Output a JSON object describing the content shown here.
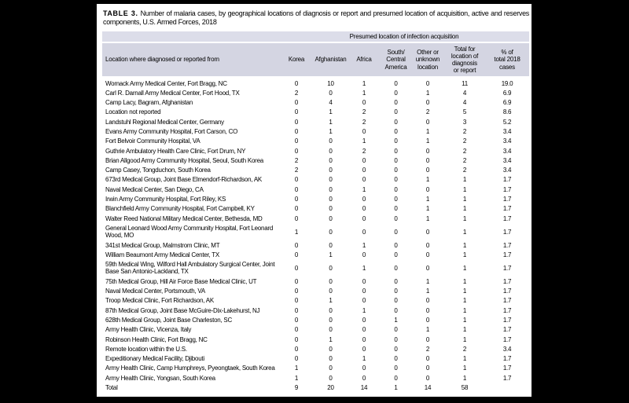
{
  "page": {
    "background_color": "#000000",
    "paper_color": "#ffffff"
  },
  "table": {
    "title_label": "TABLE 3.",
    "title_text": "Number of malaria cases, by geographical locations of diagnosis or report and presumed location of acquisition, active and reserves components, U.S. Armed Forces, 2018",
    "colors": {
      "spanner_band": "#dcdde9",
      "header_band": "#d4d5e2"
    },
    "spanner_header": "Presumed location of infection acquisition",
    "location_header": "Location where diagnosed or reported from",
    "columns": [
      "Korea",
      "Afghanistan",
      "Africa",
      "South/\nCentral\nAmerica",
      "Other or\nunknown\nlocation",
      "Total for\nlocation of\ndiagnosis\nor report",
      "% of\ntotal 2018\ncases"
    ],
    "rows": [
      {
        "location": "Womack Army Medical Center, Fort Bragg, NC",
        "values": [
          "0",
          "10",
          "1",
          "0",
          "0",
          "11",
          "19.0"
        ]
      },
      {
        "location": "Carl R. Darnall Army Medical Center, Fort Hood, TX",
        "values": [
          "2",
          "0",
          "1",
          "0",
          "1",
          "4",
          "6.9"
        ]
      },
      {
        "location": "Camp Lacy, Bagram, Afghanistan",
        "values": [
          "0",
          "4",
          "0",
          "0",
          "0",
          "4",
          "6.9"
        ]
      },
      {
        "location": "Location not reported",
        "values": [
          "0",
          "1",
          "2",
          "0",
          "2",
          "5",
          "8.6"
        ]
      },
      {
        "location": "Landstuhl Regional Medical Center, Germany",
        "values": [
          "0",
          "1",
          "2",
          "0",
          "0",
          "3",
          "5.2"
        ]
      },
      {
        "location": "Evans Army Community Hospital, Fort Carson, CO",
        "values": [
          "0",
          "1",
          "0",
          "0",
          "1",
          "2",
          "3.4"
        ]
      },
      {
        "location": "Fort Belvoir Community Hospital, VA",
        "values": [
          "0",
          "0",
          "1",
          "0",
          "1",
          "2",
          "3.4"
        ]
      },
      {
        "location": "Guthrie Ambulatory Health Care Clinic, Fort Drum, NY",
        "values": [
          "0",
          "0",
          "2",
          "0",
          "0",
          "2",
          "3.4"
        ]
      },
      {
        "location": "Brian Allgood Army Community Hospital, Seoul, South Korea",
        "values": [
          "2",
          "0",
          "0",
          "0",
          "0",
          "2",
          "3.4"
        ]
      },
      {
        "location": "Camp Casey, Tongduchon, South Korea",
        "values": [
          "2",
          "0",
          "0",
          "0",
          "0",
          "2",
          "3.4"
        ]
      },
      {
        "location": "673rd Medical Group, Joint Base Elmendorf-Richardson, AK",
        "values": [
          "0",
          "0",
          "0",
          "0",
          "1",
          "1",
          "1.7"
        ]
      },
      {
        "location": "Naval Medical Center, San Diego, CA",
        "values": [
          "0",
          "0",
          "1",
          "0",
          "0",
          "1",
          "1.7"
        ]
      },
      {
        "location": "Irwin Army Community Hospital, Fort Riley, KS",
        "values": [
          "0",
          "0",
          "0",
          "0",
          "1",
          "1",
          "1.7"
        ]
      },
      {
        "location": "Blanchfield Army Community Hospital, Fort Campbell, KY",
        "values": [
          "0",
          "0",
          "0",
          "0",
          "1",
          "1",
          "1.7"
        ]
      },
      {
        "location": "Walter Reed National Military Medical Center, Bethesda, MD",
        "values": [
          "0",
          "0",
          "0",
          "0",
          "1",
          "1",
          "1.7"
        ]
      },
      {
        "location": "General Leonard Wood Army Community Hospital, Fort Leonard Wood, MO",
        "values": [
          "1",
          "0",
          "0",
          "0",
          "0",
          "1",
          "1.7"
        ]
      },
      {
        "location": "341st Medical Group, Malmstrom Clinic, MT",
        "values": [
          "0",
          "0",
          "1",
          "0",
          "0",
          "1",
          "1.7"
        ]
      },
      {
        "location": "William Beaumont Army Medical Center, TX",
        "values": [
          "0",
          "1",
          "0",
          "0",
          "0",
          "1",
          "1.7"
        ]
      },
      {
        "location": "59th Medical Wing, Wilford Hall Ambulatory Surgical Center, Joint Base San Antonio-Lackland, TX",
        "values": [
          "0",
          "0",
          "1",
          "0",
          "0",
          "1",
          "1.7"
        ]
      },
      {
        "location": "75th Medical Group, Hill Air Force Base Medical Clinic, UT",
        "values": [
          "0",
          "0",
          "0",
          "0",
          "1",
          "1",
          "1.7"
        ]
      },
      {
        "location": "Naval Medical Center, Portsmouth, VA",
        "values": [
          "0",
          "0",
          "0",
          "0",
          "1",
          "1",
          "1.7"
        ]
      },
      {
        "location": "Troop Medical Clinic, Fort Richardson, AK",
        "values": [
          "0",
          "1",
          "0",
          "0",
          "0",
          "1",
          "1.7"
        ]
      },
      {
        "location": "87th Medical Group, Joint Base McGuire-Dix-Lakehurst, NJ",
        "values": [
          "0",
          "0",
          "1",
          "0",
          "0",
          "1",
          "1.7"
        ]
      },
      {
        "location": "628th Medical Group, Joint Base Charleston, SC",
        "values": [
          "0",
          "0",
          "0",
          "1",
          "0",
          "1",
          "1.7"
        ]
      },
      {
        "location": "Army Health Clinic, Vicenza, Italy",
        "values": [
          "0",
          "0",
          "0",
          "0",
          "1",
          "1",
          "1.7"
        ]
      },
      {
        "location": "Robinson Health Clinic, Fort Bragg, NC",
        "values": [
          "0",
          "1",
          "0",
          "0",
          "0",
          "1",
          "1.7"
        ]
      },
      {
        "location": "Remote location within the U.S.",
        "values": [
          "0",
          "0",
          "0",
          "0",
          "2",
          "2",
          "3.4"
        ]
      },
      {
        "location": "Expeditionary Medical Facility, Djibouti",
        "values": [
          "0",
          "0",
          "1",
          "0",
          "0",
          "1",
          "1.7"
        ]
      },
      {
        "location": "Army Health Clinic, Camp Humphreys, Pyeongtaek, South Korea",
        "values": [
          "1",
          "0",
          "0",
          "0",
          "0",
          "1",
          "1.7"
        ]
      },
      {
        "location": "Army Health Clinic, Yongsan, South Korea",
        "values": [
          "1",
          "0",
          "0",
          "0",
          "0",
          "1",
          "1.7"
        ]
      }
    ],
    "total_row": {
      "location": "Total",
      "values": [
        "9",
        "20",
        "14",
        "1",
        "14",
        "58",
        ""
      ]
    }
  }
}
